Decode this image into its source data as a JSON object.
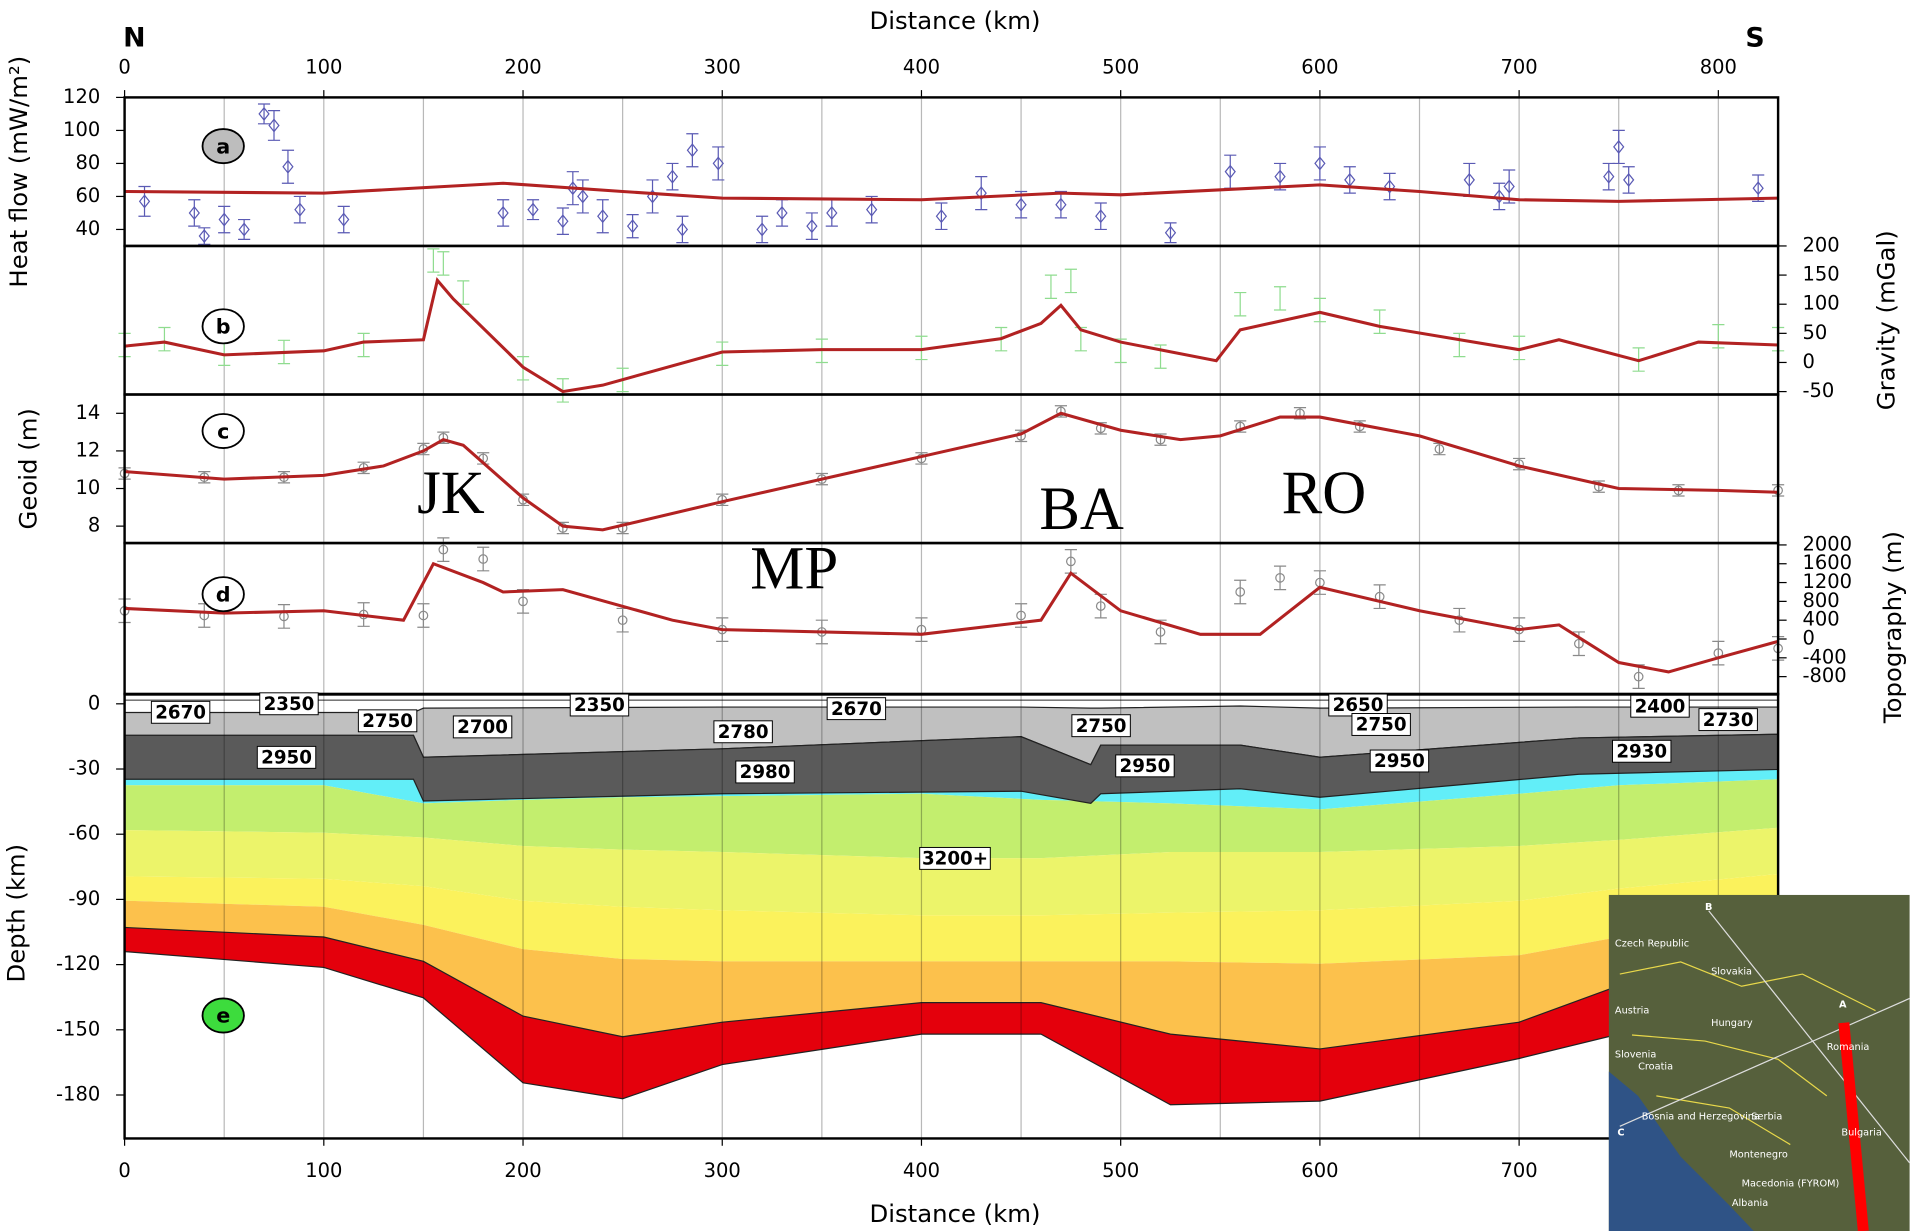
{
  "chart_data": [
    {
      "type": "scatter",
      "y_label": "Heat flow (mW/m²)",
      "yaxis": "left",
      "panel_label": "a",
      "badge_color": "#bdbdbd",
      "x_label": "Distance (km)",
      "ends": [
        "N",
        "S"
      ],
      "xlim": [
        0,
        830
      ],
      "xticks": [
        0,
        100,
        200,
        300,
        400,
        500,
        600,
        700,
        800
      ],
      "xgrid": [
        0,
        50,
        100,
        150,
        200,
        250,
        300,
        350,
        400,
        450,
        500,
        550,
        600,
        650,
        700,
        750,
        800
      ],
      "ylim": [
        30,
        120
      ],
      "yticks": [
        40,
        60,
        80,
        100,
        120
      ],
      "observed": {
        "marker": "diamond",
        "color": "#5a5ab4",
        "x": [
          10,
          35,
          40,
          50,
          60,
          70,
          75,
          82,
          88,
          110,
          190,
          205,
          220,
          225,
          230,
          240,
          255,
          265,
          275,
          280,
          285,
          298,
          320,
          330,
          345,
          355,
          375,
          410,
          430,
          450,
          470,
          490,
          525,
          555,
          580,
          600,
          615,
          635,
          675,
          690,
          695,
          745,
          750,
          755,
          820
        ],
        "values": [
          57,
          50,
          36,
          46,
          40,
          110,
          103,
          78,
          52,
          46,
          50,
          52,
          45,
          65,
          60,
          48,
          42,
          60,
          72,
          40,
          88,
          80,
          40,
          50,
          42,
          50,
          52,
          48,
          62,
          55,
          55,
          48,
          38,
          75,
          72,
          80,
          70,
          66,
          70,
          60,
          66,
          72,
          90,
          70,
          65
        ],
        "errors": [
          9,
          8,
          5,
          8,
          6,
          6,
          9,
          10,
          8,
          8,
          8,
          6,
          8,
          10,
          10,
          10,
          7,
          10,
          8,
          8,
          10,
          10,
          8,
          8,
          8,
          8,
          8,
          8,
          10,
          8,
          8,
          8,
          6,
          10,
          8,
          10,
          8,
          8,
          10,
          8,
          10,
          8,
          10,
          8,
          8
        ]
      },
      "model": {
        "color": "#b22222",
        "x": [
          0,
          100,
          190,
          250,
          300,
          400,
          470,
          500,
          600,
          650,
          700,
          750,
          830
        ],
        "values": [
          63,
          62,
          68,
          63,
          59,
          58,
          62,
          61,
          67,
          63,
          58,
          57,
          59
        ]
      }
    },
    {
      "type": "scatter",
      "y_label": "Gravity (mGal)",
      "yaxis": "right",
      "panel_label": "b",
      "badge_color": "#ffffff",
      "xlim": [
        0,
        830
      ],
      "ylim": [
        -55,
        200
      ],
      "yticks": [
        200,
        150,
        100,
        50,
        0,
        -50
      ],
      "observed": {
        "marker": "none",
        "color": "#8fdc8f",
        "x": [
          0,
          20,
          50,
          80,
          120,
          155,
          160,
          170,
          200,
          220,
          250,
          300,
          350,
          400,
          440,
          465,
          475,
          480,
          500,
          520,
          560,
          580,
          600,
          630,
          670,
          700,
          760,
          800,
          830
        ],
        "values": [
          30,
          40,
          15,
          18,
          30,
          175,
          170,
          120,
          -10,
          -48,
          -30,
          15,
          20,
          25,
          40,
          130,
          140,
          40,
          20,
          10,
          100,
          110,
          90,
          70,
          30,
          25,
          5,
          45,
          40
        ],
        "errors": [
          20,
          20,
          20,
          20,
          20,
          20,
          20,
          20,
          20,
          20,
          20,
          20,
          20,
          20,
          20,
          20,
          20,
          20,
          20,
          20,
          20,
          20,
          20,
          20,
          20,
          20,
          20,
          20,
          20
        ]
      },
      "model": {
        "color": "#b22222",
        "x": [
          0,
          20,
          50,
          100,
          120,
          150,
          157,
          165,
          200,
          220,
          240,
          300,
          350,
          400,
          440,
          460,
          470,
          480,
          500,
          548,
          560,
          600,
          630,
          700,
          720,
          760,
          790,
          830
        ],
        "values": [
          28,
          35,
          13,
          20,
          35,
          39,
          141,
          109,
          -8,
          -50,
          -39,
          18,
          22,
          22,
          41,
          67,
          98,
          56,
          35,
          3,
          56,
          86,
          62,
          22,
          39,
          3,
          35,
          30
        ]
      }
    },
    {
      "type": "scatter",
      "y_label": "Geoid (m)",
      "yaxis": "left",
      "panel_label": "c",
      "badge_color": "#ffffff",
      "xlim": [
        0,
        830
      ],
      "ylim": [
        7.1,
        15
      ],
      "yticks": [
        8,
        10,
        12,
        14
      ],
      "observed": {
        "marker": "circle",
        "color": "#8a8a8a",
        "x": [
          0,
          40,
          80,
          120,
          150,
          160,
          180,
          200,
          220,
          250,
          300,
          350,
          400,
          450,
          470,
          490,
          520,
          560,
          590,
          620,
          660,
          700,
          740,
          780,
          830
        ],
        "values": [
          10.8,
          10.6,
          10.6,
          11.1,
          12.1,
          12.7,
          11.6,
          9.4,
          7.9,
          7.9,
          9.4,
          10.5,
          11.6,
          12.8,
          14.1,
          13.2,
          12.6,
          13.3,
          14,
          13.3,
          12.1,
          11.3,
          10.1,
          9.9,
          9.9
        ],
        "errors": [
          0.3,
          0.3,
          0.3,
          0.3,
          0.3,
          0.3,
          0.3,
          0.3,
          0.3,
          0.3,
          0.3,
          0.3,
          0.3,
          0.3,
          0.3,
          0.3,
          0.3,
          0.3,
          0.3,
          0.3,
          0.3,
          0.3,
          0.3,
          0.3,
          0.3
        ]
      },
      "model": {
        "color": "#b22222",
        "x": [
          0,
          50,
          100,
          130,
          150,
          160,
          170,
          200,
          220,
          240,
          300,
          400,
          450,
          470,
          500,
          530,
          550,
          580,
          600,
          650,
          700,
          750,
          800,
          830
        ],
        "values": [
          10.9,
          10.5,
          10.7,
          11.2,
          12,
          12.6,
          12.3,
          9.5,
          8,
          7.8,
          9.3,
          11.7,
          12.9,
          14,
          13.1,
          12.6,
          12.8,
          13.8,
          13.8,
          12.8,
          11.2,
          10,
          9.9,
          9.8
        ]
      }
    },
    {
      "type": "scatter",
      "y_label": "Topography (m)",
      "yaxis": "right",
      "panel_label": "d",
      "badge_color": "#ffffff",
      "xlim": [
        0,
        830
      ],
      "ylim": [
        -1170,
        2040
      ],
      "yticks": [
        2000,
        1600,
        1200,
        800,
        400,
        0,
        -400,
        -800
      ],
      "observed": {
        "marker": "circle",
        "color": "#8a8a8a",
        "x": [
          0,
          40,
          80,
          120,
          150,
          160,
          180,
          200,
          250,
          300,
          350,
          400,
          450,
          475,
          490,
          520,
          560,
          580,
          600,
          630,
          670,
          700,
          730,
          760,
          800,
          830
        ],
        "values": [
          600,
          500,
          480,
          520,
          500,
          1900,
          1700,
          800,
          400,
          200,
          150,
          200,
          500,
          1650,
          700,
          150,
          1000,
          1300,
          1200,
          900,
          400,
          200,
          -100,
          -800,
          -300,
          -200
        ],
        "errors": [
          250,
          250,
          250,
          250,
          250,
          250,
          250,
          250,
          250,
          250,
          250,
          250,
          250,
          250,
          250,
          250,
          250,
          250,
          250,
          250,
          250,
          250,
          250,
          250,
          250,
          250
        ]
      },
      "model": {
        "color": "#b22222",
        "x": [
          0,
          50,
          100,
          120,
          140,
          155,
          180,
          190,
          220,
          275,
          300,
          400,
          460,
          475,
          500,
          540,
          570,
          600,
          650,
          700,
          720,
          750,
          775,
          800,
          830
        ],
        "values": [
          650,
          550,
          600,
          500,
          400,
          1600,
          1200,
          1000,
          1050,
          400,
          200,
          100,
          400,
          1400,
          600,
          100,
          100,
          1100,
          600,
          200,
          300,
          -500,
          -700,
          -400,
          -50
        ]
      }
    },
    {
      "type": "section",
      "y_label": "Depth (km)",
      "yaxis": "left",
      "panel_label": "e",
      "badge_color": "#3ddc3d",
      "x_label": "Distance (km)",
      "xlim": [
        0,
        830
      ],
      "xticks": [
        0,
        100,
        200,
        300,
        400,
        500,
        600,
        700
      ],
      "ylim": [
        -200,
        4.5
      ],
      "yticks": [
        0,
        -30,
        -60,
        -90,
        -120,
        -150,
        -180
      ],
      "crust": {
        "colors": [
          "#c0c0c0",
          "#5a5a5a"
        ],
        "x": [
          0,
          145,
          150,
          300,
          450,
          485,
          490,
          560,
          600,
          730,
          830
        ],
        "top": [
          -4,
          -4,
          -2,
          -1.5,
          -1.5,
          -2,
          -2,
          -1,
          -2,
          -1.5,
          -1.5
        ],
        "mid": [
          -14.5,
          -14.5,
          -24.6,
          -20.7,
          -15.1,
          -28,
          -19,
          -19,
          -24.6,
          -15.7,
          -14
        ],
        "moho": [
          -34.7,
          -34.7,
          -44.7,
          -41.4,
          -40.2,
          -45.8,
          -41.4,
          -39.1,
          -43,
          -32.4,
          -30.2
        ]
      },
      "mantle": {
        "colors": [
          "#62eef8",
          "#c3ee6e",
          "#ecf46a",
          "#fbf25c",
          "#fcc14c",
          "#e4000c"
        ],
        "x": [
          0,
          100,
          150,
          200,
          250,
          300,
          400,
          460,
          525,
          600,
          700,
          750,
          830
        ],
        "bounds": [
          [
            -37.5,
            -37.5,
            -45.8,
            -44.2,
            -43,
            -42.5,
            -41.4,
            -44.2,
            -45.8,
            -48.6,
            -41.4,
            -37.5,
            -34.7
          ],
          [
            -58.1,
            -59.3,
            -61.5,
            -65.4,
            -67.1,
            -68.2,
            -71,
            -71,
            -68.2,
            -68.2,
            -65.4,
            -62.6,
            -57
          ],
          [
            -79.4,
            -80.5,
            -83.9,
            -90.6,
            -93.4,
            -95,
            -97.3,
            -97.3,
            -96.1,
            -95,
            -90.6,
            -85,
            -78.3
          ],
          [
            -90.6,
            -93.4,
            -101.7,
            -112.9,
            -117.4,
            -118.5,
            -118.5,
            -118.5,
            -118.5,
            -119.6,
            -115.7,
            -107.3,
            -90.6
          ],
          [
            -102.9,
            -107.3,
            -118.5,
            -143.7,
            -153.2,
            -146.5,
            -137.5,
            -137.5,
            -152,
            -158.8,
            -146.5,
            -129.7,
            -112.9
          ],
          [
            -114,
            -121.3,
            -135.3,
            -174.4,
            -181.7,
            -166,
            -152,
            -152,
            -184.5,
            -182.8,
            -163.2,
            -152,
            -135.3
          ]
        ]
      },
      "density_labels": [
        2670,
        2350,
        2750,
        2700,
        2350,
        2780,
        2670,
        2950,
        2980,
        2750,
        2950,
        2650,
        2750,
        2950,
        2400,
        2730,
        2930,
        "3200+"
      ]
    }
  ],
  "annotations": [
    "JK",
    "MP",
    "BA",
    "RO"
  ],
  "inset": {
    "labels": [
      "B",
      "A",
      "C",
      "Czech Republic",
      "Slovakia",
      "Austria",
      "Hungary",
      "Romania",
      "Slovenia",
      "Croatia",
      "Bosnia and Herzegovina",
      "Serbia",
      "Bulgaria",
      "Montenegro",
      "Macedonia (FYROM)",
      "Albania"
    ]
  }
}
